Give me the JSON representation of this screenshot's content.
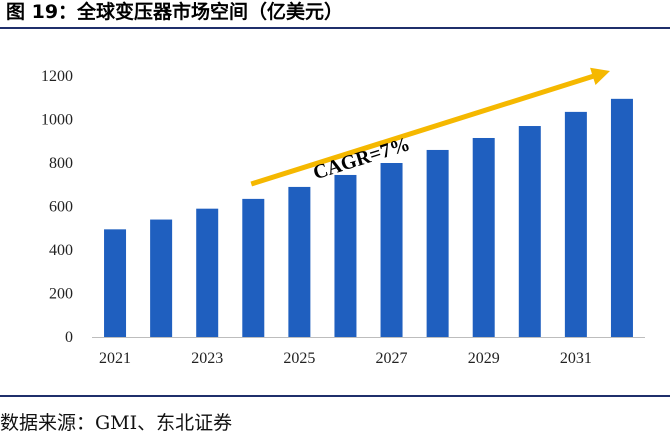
{
  "header": {
    "title": "图 19：全球变压器市场空间（亿美元）"
  },
  "footer": {
    "source": "数据来源：GMI、东北证券"
  },
  "colors": {
    "bar": "#1f5fbf",
    "arrow": "#f5b800",
    "rule": "#1f2f6b"
  },
  "chart_data": {
    "type": "bar",
    "title": "全球变压器市场空间（亿美元）",
    "xlabel": "",
    "ylabel": "",
    "categories": [
      "2021",
      "2022",
      "2023",
      "2024",
      "2025",
      "2026",
      "2027",
      "2028",
      "2029",
      "2030",
      "2031",
      "2032"
    ],
    "x_tick_labels": [
      "2021",
      "2023",
      "2025",
      "2027",
      "2029",
      "2031"
    ],
    "values": [
      495,
      540,
      590,
      635,
      690,
      745,
      800,
      860,
      915,
      970,
      1035,
      1095
    ],
    "ylim": [
      0,
      1200
    ],
    "yticks": [
      0,
      200,
      400,
      600,
      800,
      1000,
      1200
    ],
    "grid": false,
    "legend": "none",
    "annotation": {
      "text": "CAGR=7%",
      "from_category": "2024",
      "to_category": "2032"
    }
  }
}
